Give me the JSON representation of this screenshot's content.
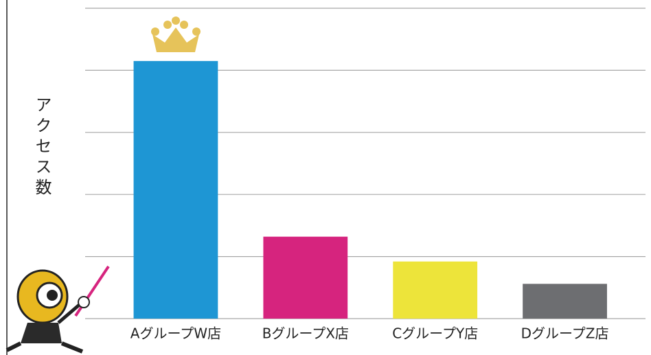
{
  "chart_data": {
    "type": "bar",
    "y_label": "アクセス数",
    "categories": [
      "AグループW店",
      "BグループX店",
      "CグループY店",
      "DグループZ店"
    ],
    "values": [
      4.15,
      1.32,
      0.92,
      0.56
    ],
    "colors": [
      "#1e96d4",
      "#d6247e",
      "#ede43a",
      "#6d6e71"
    ],
    "ylim": [
      0,
      5
    ],
    "yticks": [
      0,
      1,
      2,
      3,
      4,
      5
    ],
    "grid": true,
    "tick_labels": false
  }
}
